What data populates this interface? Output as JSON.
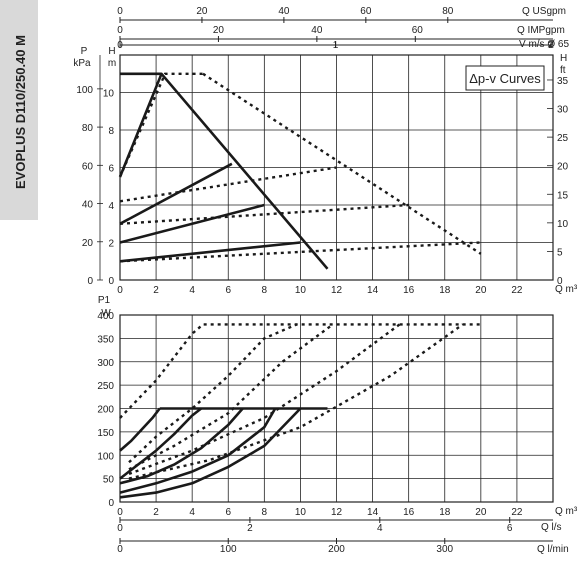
{
  "model_label": "EVOPLUS D110/250.40 M",
  "legend_label": "Δp-v Curves",
  "top_axes": {
    "usgpm": {
      "label": "Q USgpm",
      "ticks": [
        0,
        20,
        40,
        60,
        80
      ]
    },
    "impgpm": {
      "label": "Q IMPgpm",
      "ticks": [
        0,
        20,
        40,
        60
      ]
    },
    "velocity": {
      "label": "V m/s Ø 65",
      "ticks": [
        0,
        1,
        2,
        3
      ]
    }
  },
  "bottom_axes": {
    "ls": {
      "label": "Q l/s",
      "ticks": [
        0,
        2,
        4,
        6
      ]
    },
    "lmin": {
      "label": "Q l/min",
      "ticks": [
        0,
        100,
        200,
        300
      ]
    }
  },
  "chart_data": [
    {
      "type": "line",
      "title": "",
      "xlabel": "Q m³/h",
      "ylabel": "H m",
      "ylabel_left": "P kPa",
      "ylabel_right": "H ft",
      "xlim": [
        0,
        24
      ],
      "ylim": [
        0,
        12
      ],
      "xticks": [
        0,
        2,
        4,
        6,
        8,
        10,
        12,
        14,
        16,
        18,
        20,
        22
      ],
      "yticks": [
        0,
        2,
        4,
        6,
        8,
        10
      ],
      "kpa_ticks": [
        0,
        20,
        40,
        60,
        80,
        100
      ],
      "ft_ticks": [
        0,
        5,
        10,
        15,
        20,
        25,
        30,
        35
      ],
      "grid": true,
      "series": [
        {
          "style": "solid",
          "x": [
            0,
            2.3
          ],
          "y": [
            11,
            11
          ]
        },
        {
          "style": "solid",
          "x": [
            0,
            2.3,
            11.5
          ],
          "y": [
            5.5,
            11,
            0.6
          ]
        },
        {
          "style": "solid",
          "x": [
            0,
            6.2
          ],
          "y": [
            3,
            6.2
          ]
        },
        {
          "style": "solid",
          "x": [
            0,
            8
          ],
          "y": [
            2,
            4
          ]
        },
        {
          "style": "solid",
          "x": [
            0,
            10
          ],
          "y": [
            1,
            2
          ]
        },
        {
          "style": "dotted",
          "x": [
            0,
            2.5,
            4.6
          ],
          "y": [
            5.5,
            11,
            11
          ]
        },
        {
          "style": "dotted",
          "x": [
            4.6,
            20
          ],
          "y": [
            11,
            1.4
          ]
        },
        {
          "style": "dotted",
          "x": [
            0,
            12
          ],
          "y": [
            4.2,
            6
          ]
        },
        {
          "style": "dotted",
          "x": [
            0,
            16
          ],
          "y": [
            3,
            4
          ]
        },
        {
          "style": "dotted",
          "x": [
            0,
            20
          ],
          "y": [
            1,
            2
          ]
        }
      ]
    },
    {
      "type": "line",
      "title": "",
      "xlabel": "Q m³/h",
      "ylabel": "P1 W",
      "xlim": [
        0,
        24
      ],
      "ylim": [
        0,
        400
      ],
      "xticks": [
        0,
        2,
        4,
        6,
        8,
        10,
        12,
        14,
        16,
        18,
        20,
        22
      ],
      "yticks": [
        0,
        50,
        100,
        150,
        200,
        250,
        300,
        350,
        400
      ],
      "grid": true,
      "series": [
        {
          "style": "solid",
          "x": [
            2.2,
            11.5
          ],
          "y": [
            200,
            200
          ]
        },
        {
          "style": "solid",
          "x": [
            0,
            0.6,
            1.2,
            1.8,
            2.2
          ],
          "y": [
            110,
            130,
            155,
            180,
            200
          ]
        },
        {
          "style": "solid",
          "x": [
            0,
            1,
            2,
            3,
            4,
            4.5
          ],
          "y": [
            50,
            80,
            110,
            145,
            185,
            200
          ]
        },
        {
          "style": "solid",
          "x": [
            0,
            1.5,
            3,
            4.5,
            6,
            6.8
          ],
          "y": [
            40,
            55,
            80,
            115,
            165,
            200
          ]
        },
        {
          "style": "solid",
          "x": [
            0,
            2,
            4,
            6,
            8,
            8.6
          ],
          "y": [
            20,
            40,
            65,
            100,
            160,
            200
          ]
        },
        {
          "style": "solid",
          "x": [
            0,
            2,
            4,
            6,
            8,
            10
          ],
          "y": [
            10,
            20,
            40,
            75,
            120,
            200
          ]
        },
        {
          "style": "dotted",
          "x": [
            0,
            2,
            4,
            4.6,
            20
          ],
          "y": [
            180,
            260,
            360,
            380,
            380
          ]
        },
        {
          "style": "dotted",
          "x": [
            0.5,
            2,
            4,
            6,
            8,
            9.8
          ],
          "y": [
            85,
            140,
            200,
            270,
            350,
            380
          ]
        },
        {
          "style": "dotted",
          "x": [
            0.5,
            3,
            6,
            9,
            11.8
          ],
          "y": [
            70,
            120,
            190,
            300,
            380
          ]
        },
        {
          "style": "dotted",
          "x": [
            0.5,
            4,
            8,
            12,
            15.5
          ],
          "y": [
            60,
            110,
            180,
            280,
            380
          ]
        },
        {
          "style": "dotted",
          "x": [
            0.5,
            5,
            10,
            15,
            19
          ],
          "y": [
            50,
            90,
            160,
            270,
            380
          ]
        }
      ]
    }
  ]
}
